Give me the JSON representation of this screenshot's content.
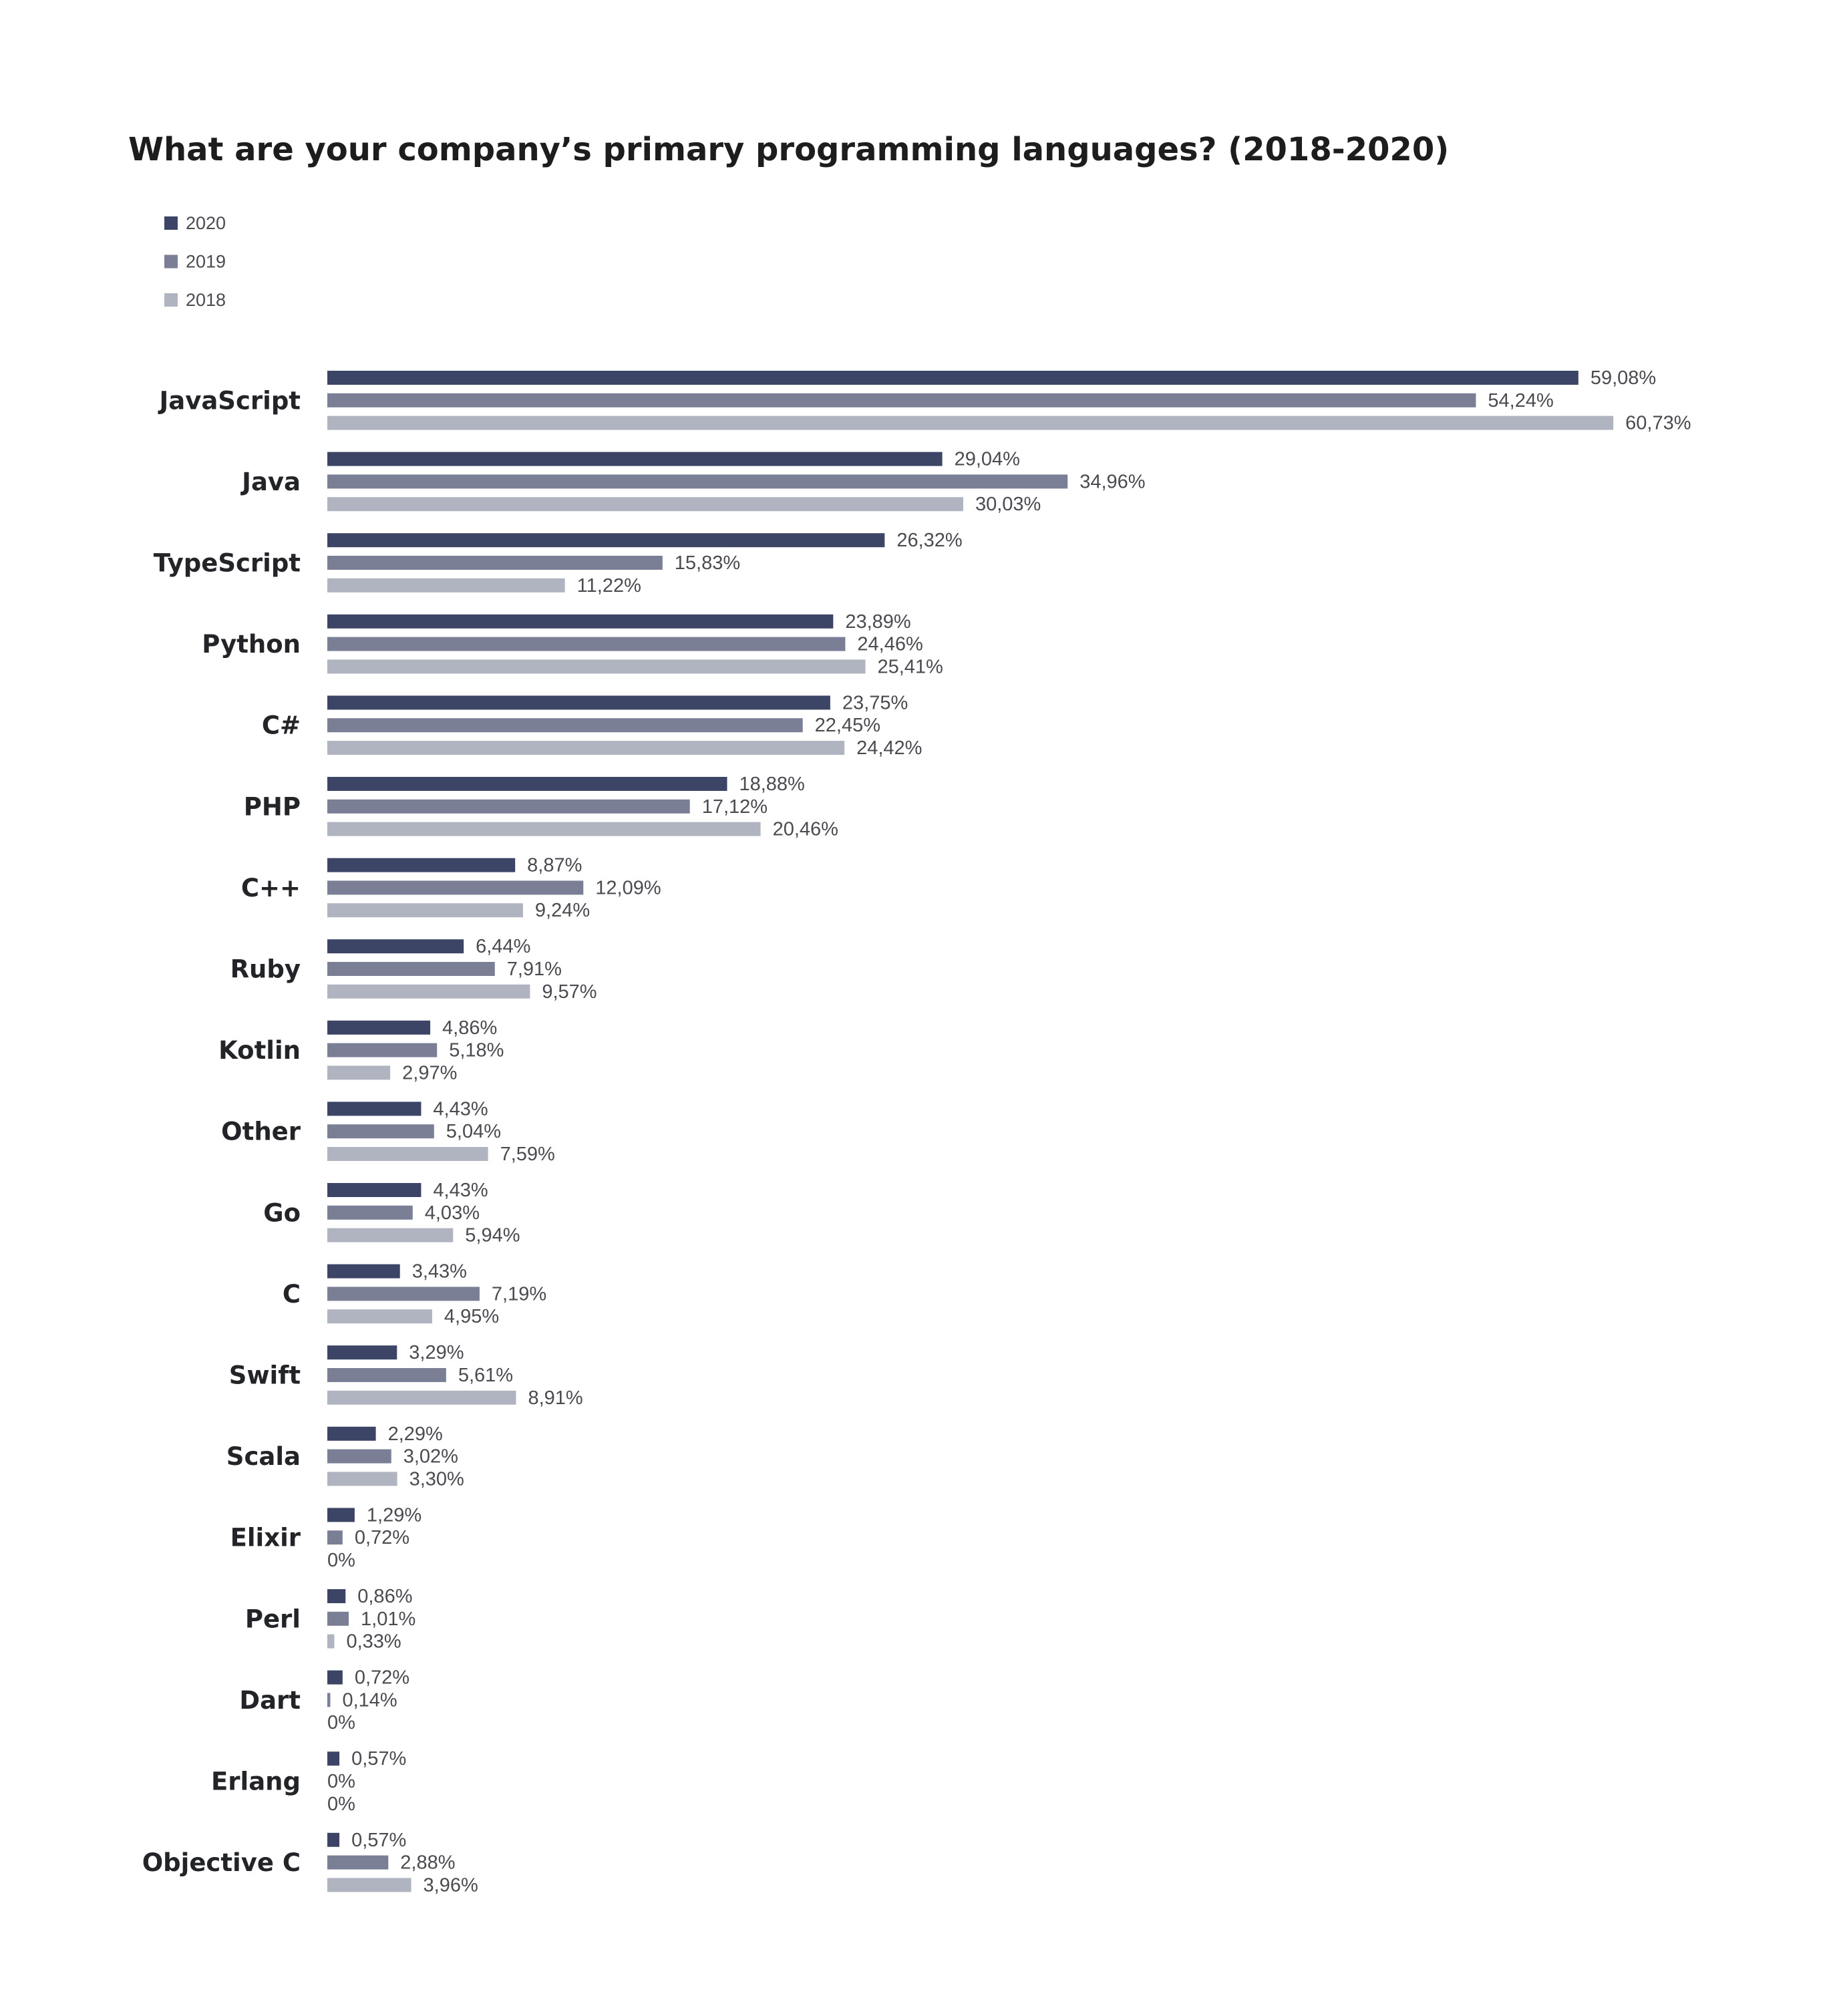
{
  "chart_data": {
    "type": "bar",
    "orientation": "horizontal",
    "title": "What are your company’s primary programming languages? (2018-2020)",
    "xlabel": "",
    "ylabel": "",
    "xlim": [
      0,
      65
    ],
    "grid": false,
    "legend_position": "top-left",
    "value_format": "percent-comma-decimal",
    "categories": [
      "JavaScript",
      "Java",
      "TypeScript",
      "Python",
      "C#",
      "PHP",
      "C++",
      "Ruby",
      "Kotlin",
      "Other",
      "Go",
      "C",
      "Swift",
      "Scala",
      "Elixir",
      "Perl",
      "Dart",
      "Erlang",
      "Objective C"
    ],
    "series": [
      {
        "name": "2020",
        "color": "#3c4566",
        "values": [
          59.08,
          29.04,
          26.32,
          23.89,
          23.75,
          18.88,
          8.87,
          6.44,
          4.86,
          4.43,
          4.43,
          3.43,
          3.29,
          2.29,
          1.29,
          0.86,
          0.72,
          0.57,
          0.57
        ],
        "labels": [
          "59,08%",
          "29,04%",
          "26,32%",
          "23,89%",
          "23,75%",
          "18,88%",
          "8,87%",
          "6,44%",
          "4,86%",
          "4,43%",
          "4,43%",
          "3,43%",
          "3,29%",
          "2,29%",
          "1,29%",
          "0,86%",
          "0,72%",
          "0,57%",
          "0,57%"
        ]
      },
      {
        "name": "2019",
        "color": "#7a7f95",
        "values": [
          54.24,
          34.96,
          15.83,
          24.46,
          22.45,
          17.12,
          12.09,
          7.91,
          5.18,
          5.04,
          4.03,
          7.19,
          5.61,
          3.02,
          0.72,
          1.01,
          0.14,
          0,
          2.88
        ],
        "labels": [
          "54,24%",
          "34,96%",
          "15,83%",
          "24,46%",
          "22,45%",
          "17,12%",
          "12,09%",
          "7,91%",
          "5,18%",
          "5,04%",
          "4,03%",
          "7,19%",
          "5,61%",
          "3,02%",
          "0,72%",
          "1,01%",
          "0,14%",
          "0%",
          "2,88%"
        ]
      },
      {
        "name": "2018",
        "color": "#b0b4c1",
        "values": [
          60.73,
          30.03,
          11.22,
          25.41,
          24.42,
          20.46,
          9.24,
          9.57,
          2.97,
          7.59,
          5.94,
          4.95,
          8.91,
          3.3,
          0,
          0.33,
          0,
          0,
          3.96
        ],
        "labels": [
          "60,73%",
          "30,03%",
          "11,22%",
          "25,41%",
          "24,42%",
          "20,46%",
          "9,24%",
          "9,57%",
          "2,97%",
          "7,59%",
          "5,94%",
          "4,95%",
          "8,91%",
          "3,30%",
          "0%",
          "0,33%",
          "0%",
          "0%",
          "3,96%"
        ]
      }
    ]
  }
}
